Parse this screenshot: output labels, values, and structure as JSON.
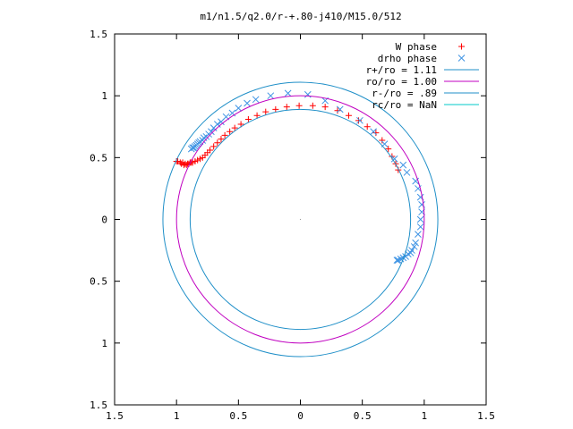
{
  "chart_data": {
    "type": "scatter",
    "title": "m1/n1.5/q2.0/r-+.80-j410/M15.0/512",
    "xlabel": "",
    "ylabel": "",
    "xlim": [
      -1.5,
      1.5
    ],
    "ylim": [
      -1.5,
      1.5
    ],
    "grid": false,
    "legend_placement": "top-right",
    "x_ticks": [
      {
        "value": -1.5,
        "label": "1.5"
      },
      {
        "value": -1.0,
        "label": "1"
      },
      {
        "value": -0.5,
        "label": "0.5"
      },
      {
        "value": 0,
        "label": "0"
      },
      {
        "value": 0.5,
        "label": "0.5"
      },
      {
        "value": 1.0,
        "label": "1"
      },
      {
        "value": 1.5,
        "label": "1.5"
      }
    ],
    "y_ticks": [
      {
        "value": 1.5,
        "label": "1.5"
      },
      {
        "value": 1.0,
        "label": "1"
      },
      {
        "value": 0.5,
        "label": "0.5"
      },
      {
        "value": 0,
        "label": "0"
      },
      {
        "value": -0.5,
        "label": "0.5"
      },
      {
        "value": -1.0,
        "label": "1"
      },
      {
        "value": -1.5,
        "label": "1.5"
      }
    ],
    "series": [
      {
        "name": "W phase",
        "kind": "points",
        "marker": "plus",
        "color": "#ff0000",
        "points": [
          [
            0.79,
            0.4
          ],
          [
            0.77,
            0.45
          ],
          [
            0.74,
            0.51
          ],
          [
            0.71,
            0.57
          ],
          [
            0.66,
            0.64
          ],
          [
            0.61,
            0.7
          ],
          [
            0.54,
            0.75
          ],
          [
            0.47,
            0.8
          ],
          [
            0.39,
            0.84
          ],
          [
            0.3,
            0.88
          ],
          [
            0.2,
            0.91
          ],
          [
            0.1,
            0.92
          ],
          [
            -0.01,
            0.92
          ],
          [
            -0.11,
            0.91
          ],
          [
            -0.2,
            0.89
          ],
          [
            -0.28,
            0.87
          ],
          [
            -0.35,
            0.84
          ],
          [
            -0.42,
            0.81
          ],
          [
            -0.48,
            0.77
          ],
          [
            -0.53,
            0.74
          ],
          [
            -0.57,
            0.71
          ],
          [
            -0.61,
            0.68
          ],
          [
            -0.64,
            0.65
          ],
          [
            -0.67,
            0.62
          ],
          [
            -0.7,
            0.59
          ],
          [
            -0.73,
            0.56
          ],
          [
            -0.75,
            0.54
          ],
          [
            -0.77,
            0.52
          ],
          [
            -0.79,
            0.5
          ],
          [
            -0.81,
            0.49
          ],
          [
            -0.83,
            0.48
          ],
          [
            -0.85,
            0.47
          ],
          [
            -0.87,
            0.46
          ],
          [
            -0.89,
            0.46
          ],
          [
            -0.91,
            0.45
          ],
          [
            -0.93,
            0.45
          ],
          [
            -0.95,
            0.46
          ],
          [
            -0.97,
            0.46
          ],
          [
            -0.99,
            0.47
          ],
          [
            -1.0,
            0.47
          ],
          [
            -0.96,
            0.45
          ],
          [
            -0.94,
            0.44
          ],
          [
            -0.92,
            0.44
          ],
          [
            -0.9,
            0.45
          ],
          [
            -0.88,
            0.46
          ]
        ]
      },
      {
        "name": "drho phase",
        "kind": "points",
        "marker": "cross",
        "color": "#3f94e4",
        "points": [
          [
            0.76,
            0.49
          ],
          [
            0.83,
            0.44
          ],
          [
            0.86,
            0.38
          ],
          [
            0.93,
            0.31
          ],
          [
            0.95,
            0.25
          ],
          [
            0.97,
            0.18
          ],
          [
            0.98,
            0.12
          ],
          [
            0.98,
            0.06
          ],
          [
            0.97,
            0.0
          ],
          [
            0.97,
            -0.06
          ],
          [
            0.95,
            -0.12
          ],
          [
            0.93,
            -0.19
          ],
          [
            0.92,
            -0.22
          ],
          [
            0.9,
            -0.25
          ],
          [
            0.89,
            -0.27
          ],
          [
            0.87,
            -0.28
          ],
          [
            0.85,
            -0.3
          ],
          [
            0.83,
            -0.31
          ],
          [
            0.81,
            -0.32
          ],
          [
            0.79,
            -0.33
          ],
          [
            0.78,
            -0.33
          ],
          [
            0.68,
            0.61
          ],
          [
            0.59,
            0.71
          ],
          [
            0.48,
            0.8
          ],
          [
            0.32,
            0.89
          ],
          [
            0.2,
            0.96
          ],
          [
            0.06,
            1.01
          ],
          [
            -0.1,
            1.02
          ],
          [
            -0.24,
            1.0
          ],
          [
            -0.36,
            0.97
          ],
          [
            -0.43,
            0.94
          ],
          [
            -0.5,
            0.9
          ],
          [
            -0.55,
            0.86
          ],
          [
            -0.6,
            0.83
          ],
          [
            -0.64,
            0.79
          ],
          [
            -0.67,
            0.77
          ],
          [
            -0.7,
            0.74
          ],
          [
            -0.72,
            0.71
          ],
          [
            -0.74,
            0.69
          ],
          [
            -0.76,
            0.67
          ],
          [
            -0.78,
            0.66
          ],
          [
            -0.79,
            0.64
          ],
          [
            -0.81,
            0.63
          ],
          [
            -0.82,
            0.62
          ],
          [
            -0.83,
            0.61
          ],
          [
            -0.84,
            0.6
          ],
          [
            -0.85,
            0.59
          ],
          [
            -0.86,
            0.58
          ],
          [
            -0.87,
            0.58
          ],
          [
            -0.88,
            0.57
          ]
        ]
      },
      {
        "name": "r+/ro = 1.11",
        "kind": "circle",
        "radius": 1.11,
        "color": "#1f8fc8"
      },
      {
        "name": "ro/ro = 1.00",
        "kind": "circle",
        "radius": 1.0,
        "color": "#c000c0"
      },
      {
        "name": "r-/ro = .89",
        "kind": "circle",
        "radius": 0.89,
        "color": "#1f8fc8"
      },
      {
        "name": "rc/ro = NaN",
        "kind": "circle",
        "radius": null,
        "color": "#00c8c8"
      }
    ]
  }
}
